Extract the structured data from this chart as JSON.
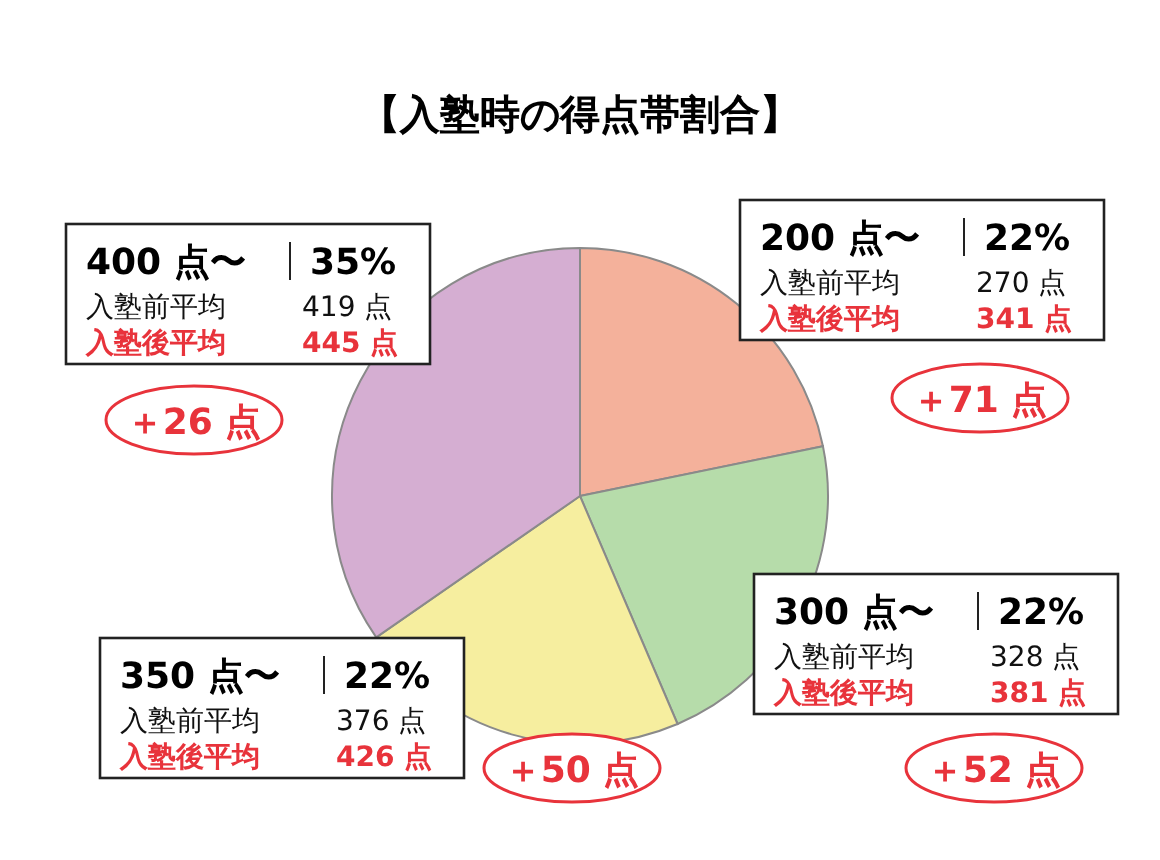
{
  "chart_data": {
    "type": "pie",
    "title": "【入塾時の得点帯割合】",
    "categories": [
      "200 点〜",
      "300 点〜",
      "350 点〜",
      "400 点〜"
    ],
    "values": [
      22,
      22,
      22,
      35
    ],
    "value_labels": [
      "22%",
      "22%",
      "22%",
      "35%"
    ],
    "colors": [
      "#f4b19b",
      "#b6dcaa",
      "#f6ee9f",
      "#d5aed2"
    ],
    "annotations": [
      "入塾前平均",
      "270 点",
      "入塾後平均",
      "341 点",
      "＋71 点",
      "入塾前平均",
      "328 点",
      "入塾後平均",
      "381 点",
      "＋52 点",
      "入塾前平均",
      "376 点",
      "入塾後平均",
      "426 点",
      "＋50 点",
      "入塾前平均",
      "419 点",
      "入塾後平均",
      "445 点",
      "＋26 点"
    ]
  }
}
